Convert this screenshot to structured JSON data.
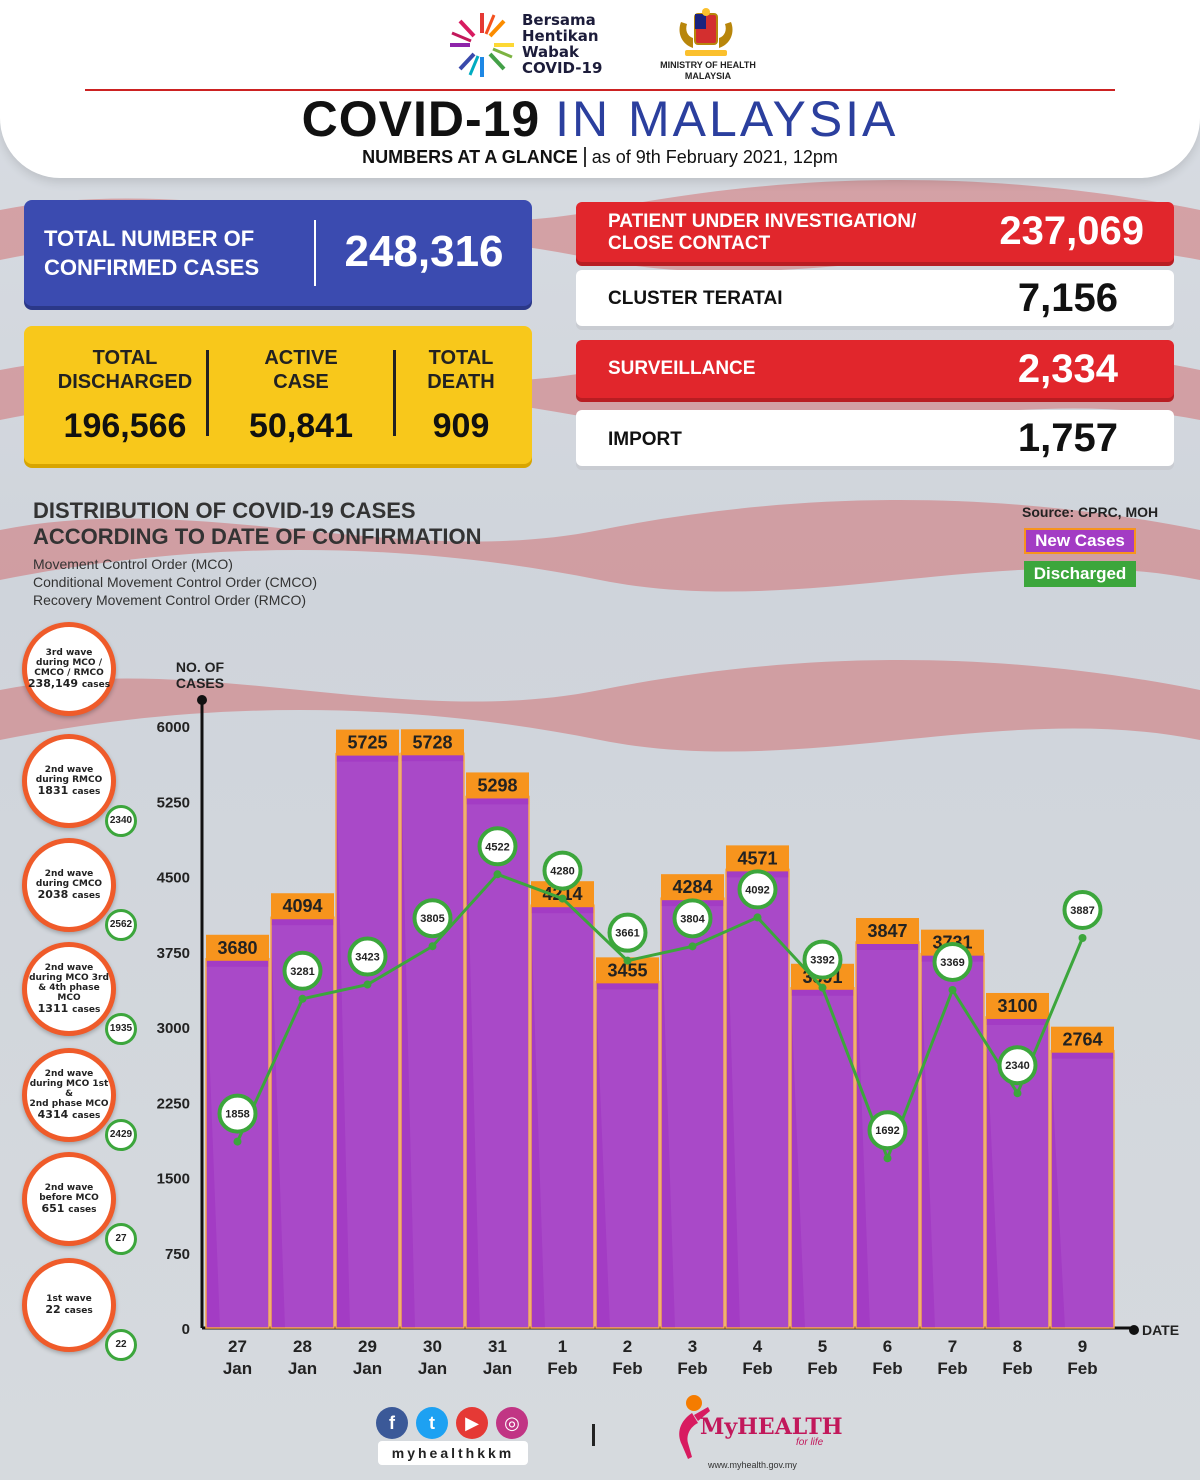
{
  "header": {
    "campaign_logo_lines": [
      "Bersama",
      "Hentikan",
      "Wabak",
      "COVID-19"
    ],
    "ministry_line1": "MINISTRY OF HEALTH",
    "ministry_line2": "MALAYSIA",
    "title_part1": "COVID-19",
    "title_part2": "IN MALAYSIA",
    "subtitle_bold": "NUMBERS AT A GLANCE",
    "subtitle_date": "as of 9th February 2021, 12pm"
  },
  "confirmed": {
    "label": "TOTAL NUMBER OF CONFIRMED CASES",
    "value": "248,316"
  },
  "yellow_stats": [
    {
      "label_line1": "TOTAL",
      "label_line2": "DISCHARGED",
      "value": "196,566"
    },
    {
      "label_line1": "ACTIVE",
      "label_line2": "CASE",
      "value": "50,841"
    },
    {
      "label_line1": "TOTAL",
      "label_line2": "DEATH",
      "value": "909"
    }
  ],
  "right_stats": [
    {
      "label_line1": "PATIENT UNDER INVESTIGATION/",
      "label_line2": "CLOSE CONTACT",
      "value": "237,069",
      "style": "red"
    },
    {
      "label_line1": "CLUSTER TERATAI",
      "label_line2": "",
      "value": "7,156",
      "style": "white"
    },
    {
      "label_line1": "SURVEILLANCE",
      "label_line2": "",
      "value": "2,334",
      "style": "red"
    },
    {
      "label_line1": "IMPORT",
      "label_line2": "",
      "value": "1,757",
      "style": "white"
    }
  ],
  "chart_text": {
    "title_line1": "DISTRIBUTION OF COVID-19 CASES",
    "title_line2": "ACCORDING TO DATE OF CONFIRMATION",
    "note1": "Movement Control Order (MCO)",
    "note2": "Conditional Movement Control Order (CMCO)",
    "note3": "Recovery Movement Control Order (RMCO)",
    "source": "Source: CPRC, MOH"
  },
  "waves": [
    {
      "lines": [
        "3rd wave",
        "during MCO /",
        "CMCO / RMCO"
      ],
      "count": "238,149",
      "unit": "cases",
      "discharged": ""
    },
    {
      "lines": [
        "2nd wave",
        "during RMCO"
      ],
      "count": "1831",
      "unit": "cases",
      "discharged": "2340"
    },
    {
      "lines": [
        "2nd wave",
        "during CMCO"
      ],
      "count": "2038",
      "unit": "cases",
      "discharged": "2562"
    },
    {
      "lines": [
        "2nd wave",
        "during MCO 3rd",
        "& 4th phase MCO"
      ],
      "count": "1311",
      "unit": "cases",
      "discharged": "1935"
    },
    {
      "lines": [
        "2nd wave",
        "during MCO 1st &",
        "2nd phase MCO"
      ],
      "count": "4314",
      "unit": "cases",
      "discharged": "2429"
    },
    {
      "lines": [
        "2nd wave",
        "before MCO"
      ],
      "count": "651",
      "unit": "cases",
      "discharged": "27"
    },
    {
      "lines": [
        "1st wave"
      ],
      "count": "22",
      "unit": "cases",
      "discharged": "22"
    }
  ],
  "chart_data": {
    "type": "bar",
    "ylabel": "NO. OF CASES",
    "xlabel": "DATE",
    "ylim": [
      0,
      6000
    ],
    "yticks": [
      0,
      750,
      1500,
      2250,
      3000,
      3750,
      4500,
      5250,
      6000
    ],
    "categories": [
      [
        "27",
        "Jan"
      ],
      [
        "28",
        "Jan"
      ],
      [
        "29",
        "Jan"
      ],
      [
        "30",
        "Jan"
      ],
      [
        "31",
        "Jan"
      ],
      [
        "1",
        "Feb"
      ],
      [
        "2",
        "Feb"
      ],
      [
        "3",
        "Feb"
      ],
      [
        "4",
        "Feb"
      ],
      [
        "5",
        "Feb"
      ],
      [
        "6",
        "Feb"
      ],
      [
        "7",
        "Feb"
      ],
      [
        "8",
        "Feb"
      ],
      [
        "9",
        "Feb"
      ]
    ],
    "series": [
      {
        "name": "New Cases",
        "type": "bar",
        "color": "#a33cc4",
        "label_color": "#f7941d",
        "values": [
          3680,
          4094,
          5725,
          5728,
          5298,
          4214,
          3455,
          4284,
          4571,
          3391,
          3847,
          3731,
          3100,
          2764
        ]
      },
      {
        "name": "Discharged",
        "type": "line",
        "color": "#3ca63c",
        "values": [
          1858,
          3281,
          3423,
          3805,
          4522,
          4280,
          3661,
          3804,
          4092,
          3392,
          1692,
          3369,
          2340,
          3887
        ]
      }
    ]
  },
  "footer": {
    "handle": "myhealthkkm",
    "brand": "MyHEALTH",
    "tagline": "for life",
    "url": "www.myhealth.gov.my",
    "social_icons": [
      "facebook-icon",
      "twitter-icon",
      "youtube-icon",
      "instagram-icon"
    ]
  },
  "colors": {
    "blue": "#3b4bb0",
    "yellow": "#f8c81b",
    "red": "#e1262c",
    "purple": "#a33cc4",
    "orange": "#f7941d",
    "green": "#3ca63c"
  }
}
